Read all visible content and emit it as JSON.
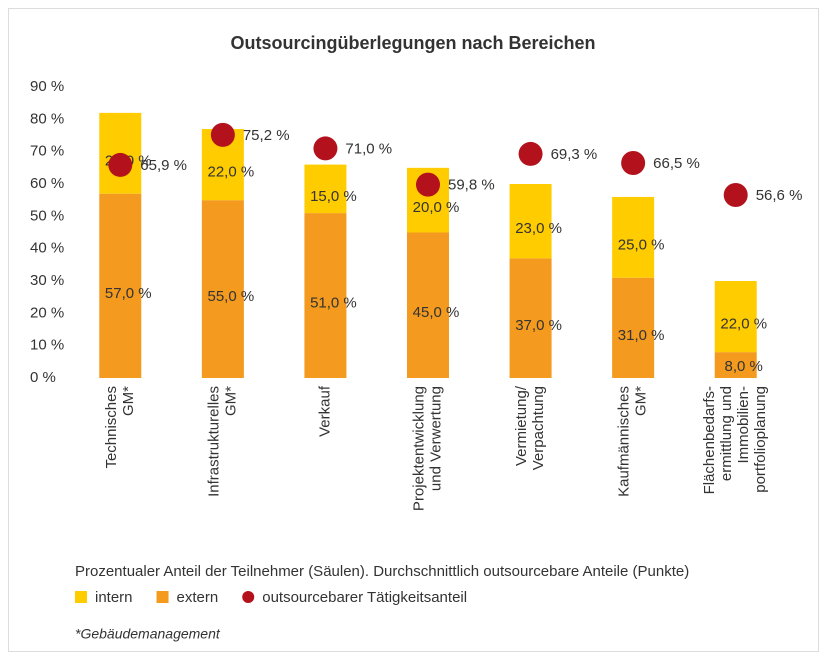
{
  "chart_data": {
    "type": "bar",
    "stacked": true,
    "title": "Outsourcingüberlegungen nach Bereichen",
    "categories": [
      [
        "Technisches",
        "GM*"
      ],
      [
        "Infrastrukturelles",
        "GM*"
      ],
      [
        "Verkauf"
      ],
      [
        "Projektentwicklung",
        "und Verwertung"
      ],
      [
        "Vermietung/",
        "Verpachtung"
      ],
      [
        "Kaufmännisches",
        "GM*"
      ],
      [
        "Flächenbedarfs-",
        "ermittlung und",
        "Immobilien-",
        "portfolioplanung"
      ]
    ],
    "series": [
      {
        "name": "intern",
        "color": "#ffcc00",
        "values": [
          25,
          22,
          15,
          20,
          23,
          25,
          22
        ],
        "value_labels": [
          "25,0 %",
          "22,0 %",
          "15,0 %",
          "20,0 %",
          "23,0 %",
          "25,0 %",
          "22,0 %"
        ]
      },
      {
        "name": "extern",
        "color": "#f39a1f",
        "values": [
          57,
          55,
          51,
          45,
          37,
          31,
          8
        ],
        "value_labels": [
          "57,0 %",
          "55,0 %",
          "51,0 %",
          "45,0 %",
          "37,0 %",
          "31,0 %",
          "8,0 %"
        ]
      },
      {
        "name": "outsourcebarer Tätigkeitsanteil",
        "type": "dot",
        "color": "#b3121c",
        "values": [
          65.9,
          75.2,
          71.0,
          59.8,
          69.3,
          66.5,
          56.6
        ],
        "value_labels": [
          "65,9 %",
          "75,2 %",
          "71,0 %",
          "59,8 %",
          "69,3 %",
          "66,5 %",
          "56,6 %"
        ]
      }
    ],
    "ylim": [
      0,
      90
    ],
    "yticks": [
      {
        "value": 0,
        "label": "0 %"
      },
      {
        "value": 10,
        "label": "10 %"
      },
      {
        "value": 20,
        "label": "20 %"
      },
      {
        "value": 30,
        "label": "30 %"
      },
      {
        "value": 40,
        "label": "40 %"
      },
      {
        "value": 50,
        "label": "50 %"
      },
      {
        "value": 60,
        "label": "60 %"
      },
      {
        "value": 70,
        "label": "70 %"
      },
      {
        "value": 80,
        "label": "80 %"
      },
      {
        "value": 90,
        "label": "90 %"
      }
    ],
    "grid": false,
    "caption": "Prozentualer Anteil der Teilnehmer (Säulen). Durchschnittlich outsourcebare Anteile (Punkte)",
    "footnote": "*Gebäudemanagement"
  }
}
